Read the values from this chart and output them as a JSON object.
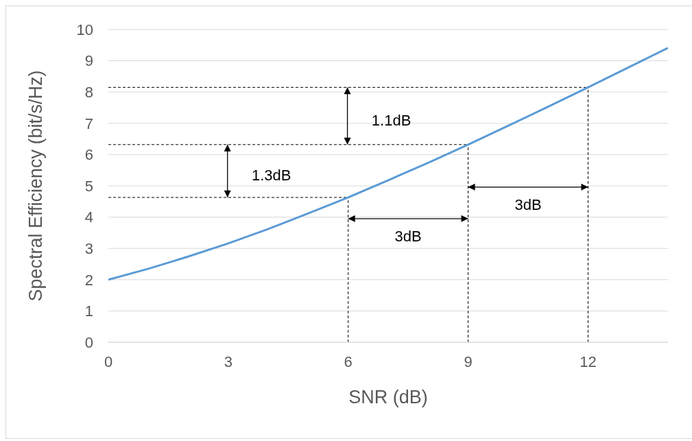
{
  "chart_data": {
    "type": "line",
    "xlabel": "SNR (dB)",
    "ylabel": "Spectral Efficiency (bit/s/Hz)",
    "x": [
      0,
      1,
      2,
      3,
      4,
      5,
      6,
      7,
      8,
      9,
      10,
      11,
      12,
      13,
      14
    ],
    "series": [
      {
        "color": "#5b9bd5",
        "values": [
          2.0,
          2.35,
          2.74,
          3.16,
          3.62,
          4.12,
          4.63,
          5.18,
          5.74,
          6.32,
          6.92,
          7.53,
          8.15,
          8.78,
          9.41
        ]
      }
    ],
    "xlim": [
      0,
      14
    ],
    "xticks": [
      0,
      3,
      6,
      9,
      12
    ],
    "ylim": [
      0,
      10
    ],
    "yticks": [
      0,
      1,
      2,
      3,
      4,
      5,
      6,
      7,
      8,
      9,
      10
    ],
    "grid": "y",
    "marker": "none",
    "line_style": "solid",
    "ref_lines": [
      {
        "axis": "y",
        "value": 4.63,
        "line_style": "dashed",
        "color": "#000000"
      },
      {
        "axis": "y",
        "value": 6.32,
        "line_style": "dashed",
        "color": "#000000"
      },
      {
        "axis": "y",
        "value": 8.15,
        "line_style": "dashed",
        "color": "#000000"
      },
      {
        "axis": "x",
        "value": 6,
        "line_style": "dashed",
        "color": "#000000"
      },
      {
        "axis": "x",
        "value": 9,
        "line_style": "dashed",
        "color": "#000000"
      },
      {
        "axis": "x",
        "value": 12,
        "line_style": "dashed",
        "color": "#000000"
      }
    ],
    "annotations": [
      "1.3dB",
      "1.1dB",
      "3dB",
      "3dB"
    ]
  }
}
